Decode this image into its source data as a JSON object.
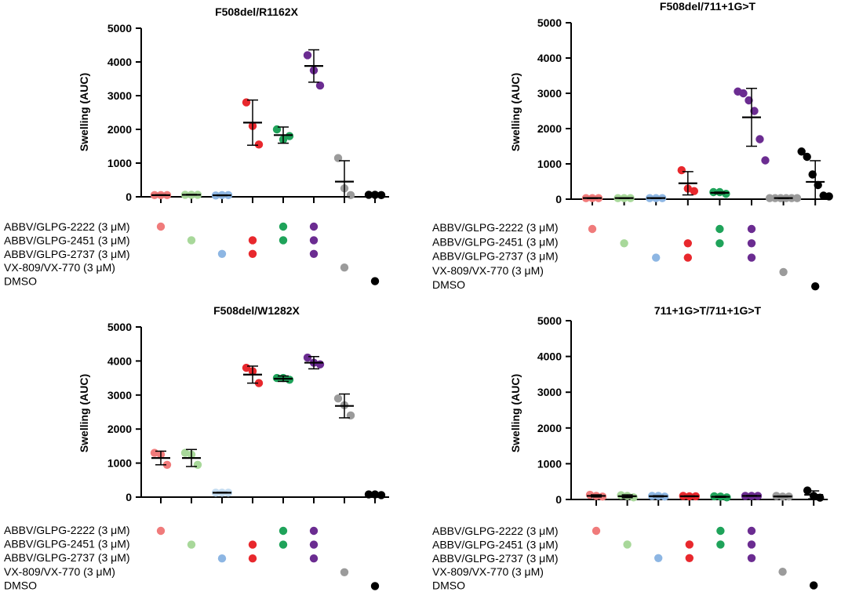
{
  "colors": {
    "pink": "#F07B7B",
    "lightgreen": "#A8D89A",
    "lightblue": "#8DB6E3",
    "red": "#E8282D",
    "green": "#1FA35A",
    "purple": "#6B2C91",
    "grey": "#9B9B9B",
    "black": "#000000",
    "lightblue_pale": "#C4DCF1"
  },
  "conditions": {
    "labels": [
      "ABBV/GLPG-2222 (3 μM)",
      "ABBV/GLPG-2451 (3 μM)",
      "ABBV/GLPG-2737 (3 μM)",
      "VX-809/VX-770 (3 μM)",
      "DMSO"
    ],
    "matrix": [
      [
        {
          "row": 0,
          "color": "pink"
        }
      ],
      [
        {
          "row": 1,
          "color": "lightgreen"
        }
      ],
      [
        {
          "row": 2,
          "color": "lightblue"
        }
      ],
      [
        {
          "row": 1,
          "color": "red"
        },
        {
          "row": 2,
          "color": "red"
        }
      ],
      [
        {
          "row": 0,
          "color": "green"
        },
        {
          "row": 1,
          "color": "green"
        }
      ],
      [
        {
          "row": 0,
          "color": "purple"
        },
        {
          "row": 1,
          "color": "purple"
        },
        {
          "row": 2,
          "color": "purple"
        }
      ],
      [
        {
          "row": 3,
          "color": "grey"
        }
      ],
      [
        {
          "row": 4,
          "color": "black"
        }
      ]
    ]
  },
  "chart_data": [
    {
      "type": "scatter",
      "title": "F508del/R1162X",
      "ylabel": "Swelling (AUC)",
      "ylim": [
        0,
        5000
      ],
      "yticks": [
        "0",
        "1000",
        "2000",
        "3000",
        "4000",
        "5000"
      ],
      "groups": [
        {
          "color": "pink",
          "points": [
            50,
            50,
            50
          ],
          "mean": 50,
          "sd": 10
        },
        {
          "color": "lightgreen",
          "points": [
            60,
            60,
            60
          ],
          "mean": 60,
          "sd": 10
        },
        {
          "color": "lightblue",
          "points": [
            40,
            50,
            50
          ],
          "mean": 45,
          "sd": 10
        },
        {
          "color": "red",
          "points": [
            2800,
            2100,
            1550
          ],
          "mean": 2200,
          "sd": 670
        },
        {
          "color": "green",
          "points": [
            2000,
            1700,
            1800
          ],
          "mean": 1830,
          "sd": 240
        },
        {
          "color": "purple",
          "points": [
            4200,
            3750,
            3300
          ],
          "mean": 3880,
          "sd": 480
        },
        {
          "color": "grey",
          "points": [
            1150,
            250,
            50
          ],
          "mean": 450,
          "sd": 620
        },
        {
          "color": "black",
          "points": [
            60,
            60,
            50
          ],
          "mean": 55,
          "sd": 10
        }
      ]
    },
    {
      "type": "scatter",
      "title": "F508del/711+1G>T",
      "ylabel": "Swelling (AUC)",
      "ylim": [
        0,
        5000
      ],
      "yticks": [
        "0",
        "1000",
        "2000",
        "3000",
        "4000",
        "5000"
      ],
      "groups": [
        {
          "color": "pink",
          "points": [
            30,
            30,
            30
          ],
          "mean": 30,
          "sd": 10
        },
        {
          "color": "lightgreen",
          "points": [
            30,
            30,
            30
          ],
          "mean": 30,
          "sd": 10
        },
        {
          "color": "lightblue",
          "points": [
            30,
            30,
            30
          ],
          "mean": 30,
          "sd": 10
        },
        {
          "color": "red",
          "points": [
            820,
            300,
            230
          ],
          "mean": 450,
          "sd": 330
        },
        {
          "color": "green",
          "points": [
            200,
            200,
            150
          ],
          "mean": 180,
          "sd": 20
        },
        {
          "color": "purple",
          "points": [
            3050,
            3000,
            2800,
            2500,
            1700,
            1100
          ],
          "mean": 2320,
          "sd": 820
        },
        {
          "color": "grey",
          "points": [
            30,
            30,
            30,
            30,
            30,
            30
          ],
          "mean": 30,
          "sd": 10
        },
        {
          "color": "black",
          "points": [
            1350,
            1200,
            700,
            400,
            100,
            80
          ],
          "mean": 490,
          "sd": 600
        }
      ]
    },
    {
      "type": "scatter",
      "title": "F508del/W1282X",
      "ylabel": "Swelling (AUC)",
      "ylim": [
        0,
        5000
      ],
      "yticks": [
        "0",
        "1000",
        "2000",
        "3000",
        "4000",
        "5000"
      ],
      "groups": [
        {
          "color": "pink",
          "points": [
            1300,
            1250,
            950
          ],
          "mean": 1150,
          "sd": 200
        },
        {
          "color": "lightgreen",
          "points": [
            1300,
            1250,
            950
          ],
          "mean": 1150,
          "sd": 250
        },
        {
          "color": "lightblue_pale",
          "points": [
            130,
            130,
            130
          ],
          "mean": 130,
          "sd": 10
        },
        {
          "color": "red",
          "points": [
            3800,
            3700,
            3350
          ],
          "mean": 3600,
          "sd": 250
        },
        {
          "color": "green",
          "points": [
            3500,
            3500,
            3450
          ],
          "mean": 3480,
          "sd": 80
        },
        {
          "color": "purple",
          "points": [
            4100,
            3950,
            3900
          ],
          "mean": 3950,
          "sd": 180
        },
        {
          "color": "grey",
          "points": [
            2900,
            2700,
            2400
          ],
          "mean": 2680,
          "sd": 350
        },
        {
          "color": "black",
          "points": [
            80,
            80,
            60
          ],
          "mean": 70,
          "sd": 10
        }
      ]
    },
    {
      "type": "scatter",
      "title": "711+1G>T/711+1G>T",
      "ylabel": "Swelling (AUC)",
      "ylim": [
        0,
        5000
      ],
      "yticks": [
        "0",
        "1000",
        "2000",
        "3000",
        "4000",
        "5000"
      ],
      "groups": [
        {
          "color": "pink",
          "points": [
            130,
            100,
            80
          ],
          "mean": 100,
          "sd": 30
        },
        {
          "color": "lightgreen",
          "points": [
            120,
            100,
            60
          ],
          "mean": 90,
          "sd": 40
        },
        {
          "color": "lightblue",
          "points": [
            100,
            100,
            80
          ],
          "mean": 90,
          "sd": 15
        },
        {
          "color": "red",
          "points": [
            100,
            90,
            90
          ],
          "mean": 90,
          "sd": 10
        },
        {
          "color": "green",
          "points": [
            90,
            80,
            60
          ],
          "mean": 75,
          "sd": 15
        },
        {
          "color": "purple",
          "points": [
            100,
            100,
            100
          ],
          "mean": 100,
          "sd": 10
        },
        {
          "color": "grey",
          "points": [
            100,
            80,
            80
          ],
          "mean": 85,
          "sd": 10
        },
        {
          "color": "black",
          "points": [
            250,
            100,
            50
          ],
          "mean": 130,
          "sd": 110
        }
      ]
    }
  ]
}
